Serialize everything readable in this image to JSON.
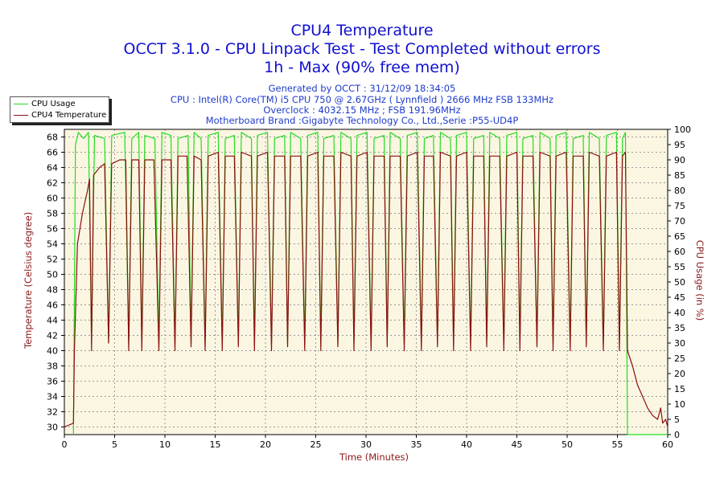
{
  "chart_data": {
    "type": "line",
    "title": "CPU4 Temperature",
    "subtitle_1": "OCCT 3.1.0 - CPU Linpack Test - Test Completed without errors",
    "subtitle_2": "1h - Max (90% free mem)",
    "info": {
      "generated": "Generated by OCCT : 31/12/09 18:34:05",
      "cpu": "CPU : Intel(R) Core(TM) i5 CPU 750 @ 2.67GHz ( Lynnfield ) 2666 MHz FSB 133MHz",
      "overclock": "Overclock : 4032.15 MHz ; FSB 191.96MHz",
      "motherboard": "Motherboard Brand :Gigabyte Technology Co., Ltd.,Serie :P55-UD4P"
    },
    "xlabel": "Time (Minutes)",
    "ylabel_left": "Temperature (Celsius degree)",
    "ylabel_right": "CPU Usage (in %)",
    "xlim": [
      0,
      60
    ],
    "ylim_left": [
      29,
      69
    ],
    "ylim_right": [
      0,
      100
    ],
    "x_ticks": [
      0,
      5,
      10,
      15,
      20,
      25,
      30,
      35,
      40,
      45,
      50,
      55,
      60
    ],
    "y_ticks_left": [
      30,
      32,
      34,
      36,
      38,
      40,
      42,
      44,
      46,
      48,
      50,
      52,
      54,
      56,
      58,
      60,
      62,
      64,
      66,
      68
    ],
    "y_ticks_right": [
      0,
      5,
      10,
      15,
      20,
      25,
      30,
      35,
      40,
      45,
      50,
      55,
      60,
      65,
      70,
      75,
      80,
      85,
      90,
      95,
      100
    ],
    "grid": true,
    "legend_position": "top-left",
    "series": [
      {
        "name": "CPU Usage",
        "axis": "right",
        "color": "#22dd22",
        "points": [
          [
            0.9,
            0
          ],
          [
            1.1,
            95
          ],
          [
            1.4,
            99
          ],
          [
            1.9,
            97
          ],
          [
            2.4,
            99
          ],
          [
            2.7,
            30
          ],
          [
            3.0,
            98
          ],
          [
            4.0,
            97
          ],
          [
            4.4,
            30
          ],
          [
            4.7,
            98
          ],
          [
            6.0,
            99
          ],
          [
            6.4,
            30
          ],
          [
            6.7,
            97
          ],
          [
            7.4,
            99
          ],
          [
            7.7,
            30
          ],
          [
            8.0,
            98
          ],
          [
            9.0,
            97
          ],
          [
            9.4,
            30
          ],
          [
            9.7,
            99
          ],
          [
            10.6,
            98
          ],
          [
            11.0,
            30
          ],
          [
            11.3,
            97
          ],
          [
            12.3,
            98
          ],
          [
            12.6,
            30
          ],
          [
            12.9,
            99
          ],
          [
            13.6,
            97
          ],
          [
            14.0,
            30
          ],
          [
            14.3,
            98
          ],
          [
            15.3,
            99
          ],
          [
            15.7,
            30
          ],
          [
            16.0,
            97
          ],
          [
            16.9,
            98
          ],
          [
            17.3,
            30
          ],
          [
            17.6,
            99
          ],
          [
            18.6,
            97
          ],
          [
            18.9,
            30
          ],
          [
            19.2,
            98
          ],
          [
            20.2,
            99
          ],
          [
            20.6,
            30
          ],
          [
            20.9,
            97
          ],
          [
            21.9,
            98
          ],
          [
            22.2,
            30
          ],
          [
            22.5,
            99
          ],
          [
            23.5,
            97
          ],
          [
            23.9,
            30
          ],
          [
            24.2,
            98
          ],
          [
            25.2,
            99
          ],
          [
            25.5,
            30
          ],
          [
            25.8,
            97
          ],
          [
            26.8,
            98
          ],
          [
            27.2,
            30
          ],
          [
            27.5,
            99
          ],
          [
            28.5,
            97
          ],
          [
            28.8,
            30
          ],
          [
            29.1,
            98
          ],
          [
            30.1,
            99
          ],
          [
            30.5,
            30
          ],
          [
            30.8,
            97
          ],
          [
            31.8,
            98
          ],
          [
            32.1,
            30
          ],
          [
            32.4,
            99
          ],
          [
            33.4,
            97
          ],
          [
            33.8,
            30
          ],
          [
            34.1,
            98
          ],
          [
            35.1,
            99
          ],
          [
            35.5,
            30
          ],
          [
            35.8,
            97
          ],
          [
            36.7,
            98
          ],
          [
            37.1,
            30
          ],
          [
            37.4,
            99
          ],
          [
            38.4,
            97
          ],
          [
            38.7,
            30
          ],
          [
            39.0,
            98
          ],
          [
            40.0,
            99
          ],
          [
            40.4,
            30
          ],
          [
            40.7,
            97
          ],
          [
            41.7,
            98
          ],
          [
            42.0,
            30
          ],
          [
            42.3,
            99
          ],
          [
            43.3,
            97
          ],
          [
            43.7,
            30
          ],
          [
            44.0,
            98
          ],
          [
            45.0,
            99
          ],
          [
            45.3,
            30
          ],
          [
            45.6,
            97
          ],
          [
            46.6,
            98
          ],
          [
            47.0,
            30
          ],
          [
            47.3,
            99
          ],
          [
            48.3,
            97
          ],
          [
            48.6,
            30
          ],
          [
            48.9,
            98
          ],
          [
            49.9,
            99
          ],
          [
            50.3,
            30
          ],
          [
            50.6,
            97
          ],
          [
            51.6,
            98
          ],
          [
            51.9,
            30
          ],
          [
            52.2,
            99
          ],
          [
            53.2,
            97
          ],
          [
            53.6,
            30
          ],
          [
            53.9,
            98
          ],
          [
            54.9,
            99
          ],
          [
            55.2,
            30
          ],
          [
            55.5,
            97
          ],
          [
            55.8,
            99
          ],
          [
            56.0,
            0
          ],
          [
            60.0,
            0
          ]
        ]
      },
      {
        "name": "CPU4 Temperature",
        "axis": "left",
        "color": "#8b1010",
        "points": [
          [
            0.0,
            30
          ],
          [
            0.9,
            30.5
          ],
          [
            1.0,
            40
          ],
          [
            1.3,
            54
          ],
          [
            1.8,
            58
          ],
          [
            2.3,
            61
          ],
          [
            2.5,
            62.5
          ],
          [
            2.7,
            40
          ],
          [
            2.9,
            63
          ],
          [
            3.5,
            64
          ],
          [
            4.0,
            64.5
          ],
          [
            4.4,
            41
          ],
          [
            4.7,
            64.5
          ],
          [
            5.5,
            65
          ],
          [
            6.1,
            65
          ],
          [
            6.4,
            40
          ],
          [
            6.7,
            65
          ],
          [
            7.4,
            65
          ],
          [
            7.7,
            40
          ],
          [
            8.0,
            65
          ],
          [
            8.9,
            65
          ],
          [
            9.4,
            40
          ],
          [
            9.7,
            65
          ],
          [
            10.6,
            65
          ],
          [
            11.0,
            40
          ],
          [
            11.3,
            65.5
          ],
          [
            12.2,
            65.5
          ],
          [
            12.6,
            40.5
          ],
          [
            12.9,
            65.5
          ],
          [
            13.6,
            65
          ],
          [
            14.0,
            40
          ],
          [
            14.3,
            65.5
          ],
          [
            15.3,
            66
          ],
          [
            15.7,
            40
          ],
          [
            16.0,
            65.5
          ],
          [
            16.9,
            65.5
          ],
          [
            17.3,
            40.5
          ],
          [
            17.6,
            66
          ],
          [
            18.6,
            65.5
          ],
          [
            18.9,
            40
          ],
          [
            19.2,
            65.5
          ],
          [
            20.2,
            66
          ],
          [
            20.6,
            40
          ],
          [
            20.9,
            65.5
          ],
          [
            21.9,
            65.5
          ],
          [
            22.2,
            40.5
          ],
          [
            22.5,
            65.5
          ],
          [
            23.5,
            65.5
          ],
          [
            23.9,
            40
          ],
          [
            24.2,
            65.5
          ],
          [
            25.2,
            66
          ],
          [
            25.5,
            40
          ],
          [
            25.8,
            65.5
          ],
          [
            26.8,
            65.5
          ],
          [
            27.2,
            40.5
          ],
          [
            27.5,
            66
          ],
          [
            28.5,
            65.5
          ],
          [
            28.8,
            40
          ],
          [
            29.1,
            65.5
          ],
          [
            30.1,
            66
          ],
          [
            30.5,
            40
          ],
          [
            30.8,
            65.5
          ],
          [
            31.8,
            65.5
          ],
          [
            32.1,
            40.5
          ],
          [
            32.4,
            65.5
          ],
          [
            33.4,
            65.5
          ],
          [
            33.8,
            40
          ],
          [
            34.1,
            65.5
          ],
          [
            35.1,
            66
          ],
          [
            35.5,
            40
          ],
          [
            35.8,
            65.5
          ],
          [
            36.7,
            65.5
          ],
          [
            37.1,
            40.5
          ],
          [
            37.4,
            66
          ],
          [
            38.4,
            65.5
          ],
          [
            38.7,
            40
          ],
          [
            39.0,
            65.5
          ],
          [
            40.0,
            66
          ],
          [
            40.4,
            40
          ],
          [
            40.7,
            65.5
          ],
          [
            41.7,
            65.5
          ],
          [
            42.0,
            40.5
          ],
          [
            42.3,
            65.5
          ],
          [
            43.3,
            65.5
          ],
          [
            43.7,
            40
          ],
          [
            44.0,
            65.5
          ],
          [
            45.0,
            66
          ],
          [
            45.3,
            40
          ],
          [
            45.6,
            65.5
          ],
          [
            46.6,
            65.5
          ],
          [
            47.0,
            40.5
          ],
          [
            47.3,
            66
          ],
          [
            48.3,
            65.5
          ],
          [
            48.6,
            40
          ],
          [
            48.9,
            65.5
          ],
          [
            49.9,
            66
          ],
          [
            50.3,
            40
          ],
          [
            50.6,
            65.5
          ],
          [
            51.6,
            65.5
          ],
          [
            51.9,
            40.5
          ],
          [
            52.2,
            66
          ],
          [
            53.2,
            65.5
          ],
          [
            53.6,
            40
          ],
          [
            53.9,
            65.5
          ],
          [
            54.9,
            66
          ],
          [
            55.2,
            40
          ],
          [
            55.5,
            65.5
          ],
          [
            55.8,
            66
          ],
          [
            56.0,
            40
          ],
          [
            56.5,
            38
          ],
          [
            57.0,
            35.5
          ],
          [
            57.5,
            34
          ],
          [
            58.0,
            32.5
          ],
          [
            58.5,
            31.5
          ],
          [
            59.0,
            31
          ],
          [
            59.3,
            32.5
          ],
          [
            59.5,
            30.5
          ],
          [
            59.8,
            31
          ],
          [
            60.0,
            30
          ]
        ]
      }
    ]
  }
}
